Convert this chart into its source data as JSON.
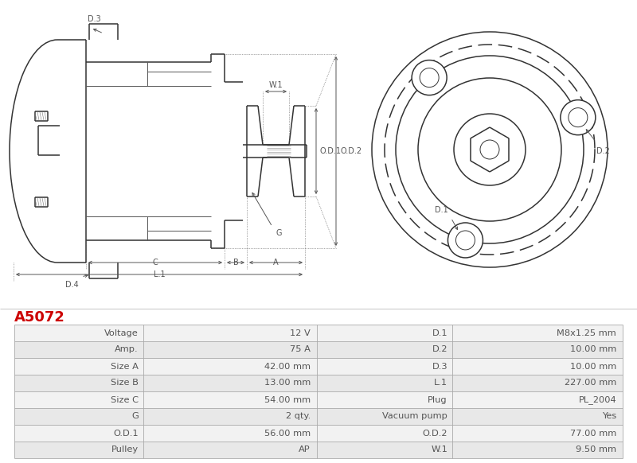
{
  "title": "A5072",
  "title_color": "#cc0000",
  "background_color": "#ffffff",
  "table_data": [
    [
      "Voltage",
      "12 V",
      "D.1",
      "M8x1.25 mm"
    ],
    [
      "Amp.",
      "75 A",
      "D.2",
      "10.00 mm"
    ],
    [
      "Size A",
      "42.00 mm",
      "D.3",
      "10.00 mm"
    ],
    [
      "Size B",
      "13.00 mm",
      "L.1",
      "227.00 mm"
    ],
    [
      "Size C",
      "54.00 mm",
      "Plug",
      "PL_2004"
    ],
    [
      "G",
      "2 qty.",
      "Vacuum pump",
      "Yes"
    ],
    [
      "O.D.1",
      "56.00 mm",
      "O.D.2",
      "77.00 mm"
    ],
    [
      "Pulley",
      "AP",
      "W.1",
      "9.50 mm"
    ]
  ],
  "line_color": "#aaaaaa",
  "text_color": "#555555",
  "row_bg_odd": "#f2f2f2",
  "row_bg_even": "#e8e8e8"
}
